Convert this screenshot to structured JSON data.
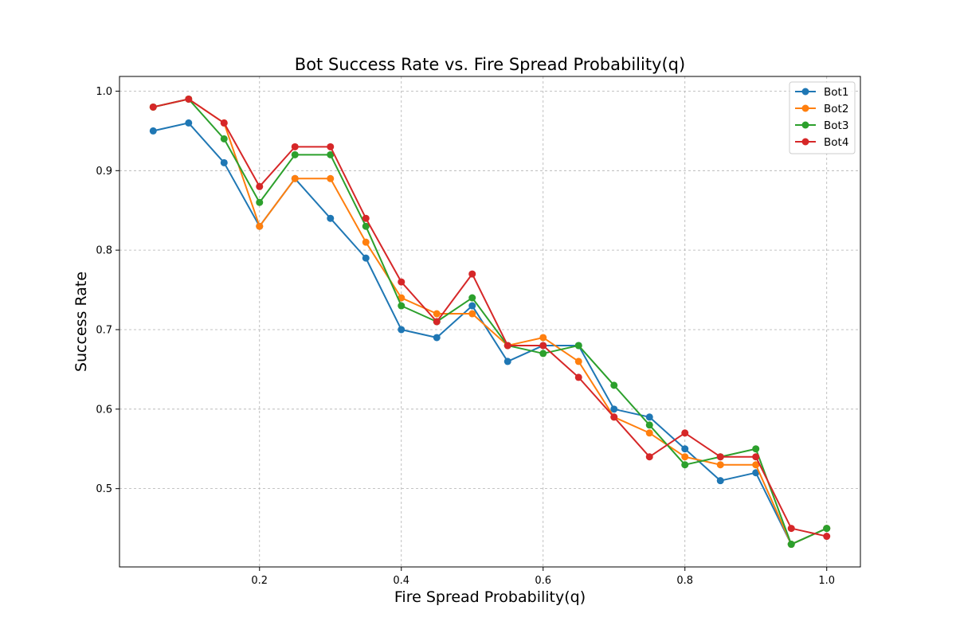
{
  "chart_data": {
    "type": "line",
    "title": "Bot Success Rate vs. Fire Spread Probability(q)",
    "xlabel": "Fire Spread Probability(q)",
    "ylabel": "Success Rate",
    "xlim": [
      0.0025,
      1.0475
    ],
    "ylim": [
      0.4015,
      1.0185
    ],
    "xticks": [
      0.2,
      0.4,
      0.6,
      0.8,
      1.0
    ],
    "xtick_labels": [
      "0.2",
      "0.4",
      "0.6",
      "0.8",
      "1.0"
    ],
    "yticks": [
      0.5,
      0.6,
      0.7,
      0.8,
      0.9,
      1.0
    ],
    "ytick_labels": [
      "0.5",
      "0.6",
      "0.7",
      "0.8",
      "0.9",
      "1.0"
    ],
    "grid": true,
    "legend_position": "top-right",
    "x": [
      0.05,
      0.1,
      0.15,
      0.2,
      0.25,
      0.3,
      0.35,
      0.4,
      0.45,
      0.5,
      0.55,
      0.6,
      0.65,
      0.7,
      0.75,
      0.8,
      0.85,
      0.9,
      0.95,
      1.0
    ],
    "series": [
      {
        "name": "Bot1",
        "color": "#1f77b4",
        "values": [
          0.95,
          0.96,
          0.91,
          0.83,
          0.89,
          0.84,
          0.79,
          0.7,
          0.69,
          0.73,
          0.66,
          0.68,
          0.68,
          0.6,
          0.59,
          0.55,
          0.51,
          0.52,
          0.43,
          0.45
        ]
      },
      {
        "name": "Bot2",
        "color": "#ff7f0e",
        "values": [
          0.98,
          0.99,
          0.96,
          0.83,
          0.89,
          0.89,
          0.81,
          0.74,
          0.72,
          0.72,
          0.68,
          0.69,
          0.66,
          0.59,
          0.57,
          0.54,
          0.53,
          0.53,
          0.43,
          0.45
        ]
      },
      {
        "name": "Bot3",
        "color": "#2ca02c",
        "values": [
          0.98,
          0.99,
          0.94,
          0.86,
          0.92,
          0.92,
          0.83,
          0.73,
          0.71,
          0.74,
          0.68,
          0.67,
          0.68,
          0.63,
          0.58,
          0.53,
          0.54,
          0.55,
          0.43,
          0.45
        ]
      },
      {
        "name": "Bot4",
        "color": "#d62728",
        "values": [
          0.98,
          0.99,
          0.96,
          0.88,
          0.93,
          0.93,
          0.84,
          0.76,
          0.71,
          0.77,
          0.68,
          0.68,
          0.64,
          0.59,
          0.54,
          0.57,
          0.54,
          0.54,
          0.45,
          0.44
        ]
      }
    ]
  }
}
